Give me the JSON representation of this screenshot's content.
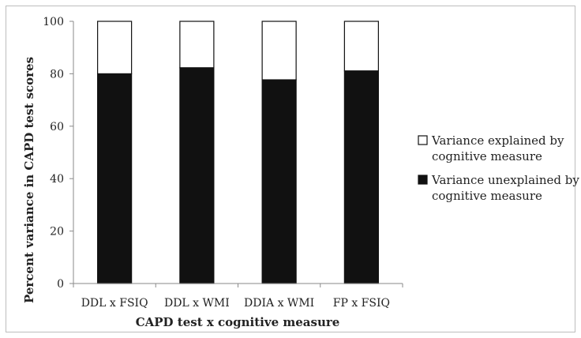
{
  "chart_data": {
    "type": "bar",
    "stacked": true,
    "categories": [
      "DDL x FSIQ",
      "DDL x WMI",
      "DDIA x WMI",
      "FP x FSIQ"
    ],
    "series": [
      {
        "name": "Variance unexplained by cognitive measure",
        "values": [
          80,
          82.3,
          77.7,
          81.1
        ],
        "color": "#111111"
      },
      {
        "name": "Variance explained by cognitive measure",
        "values": [
          20,
          17.7,
          22.3,
          18.9
        ],
        "color": "#ffffff"
      }
    ],
    "title": "",
    "xlabel": "CAPD test x cognitive measure",
    "ylabel": "Percent variance in CAPD test scores",
    "ylim": [
      0,
      100
    ],
    "yticks": [
      0,
      20,
      40,
      60,
      80,
      100
    ],
    "grid": false,
    "legend_placement": "right",
    "legend": [
      {
        "line1": "Variance explained by",
        "line2": "cognitive measure",
        "swatch": "#ffffff"
      },
      {
        "line1": "Variance unexplained by",
        "line2": "cognitive measure",
        "swatch": "#111111"
      }
    ],
    "frame_color": "#bdbdbd",
    "axis_color": "#8a8a8a"
  }
}
